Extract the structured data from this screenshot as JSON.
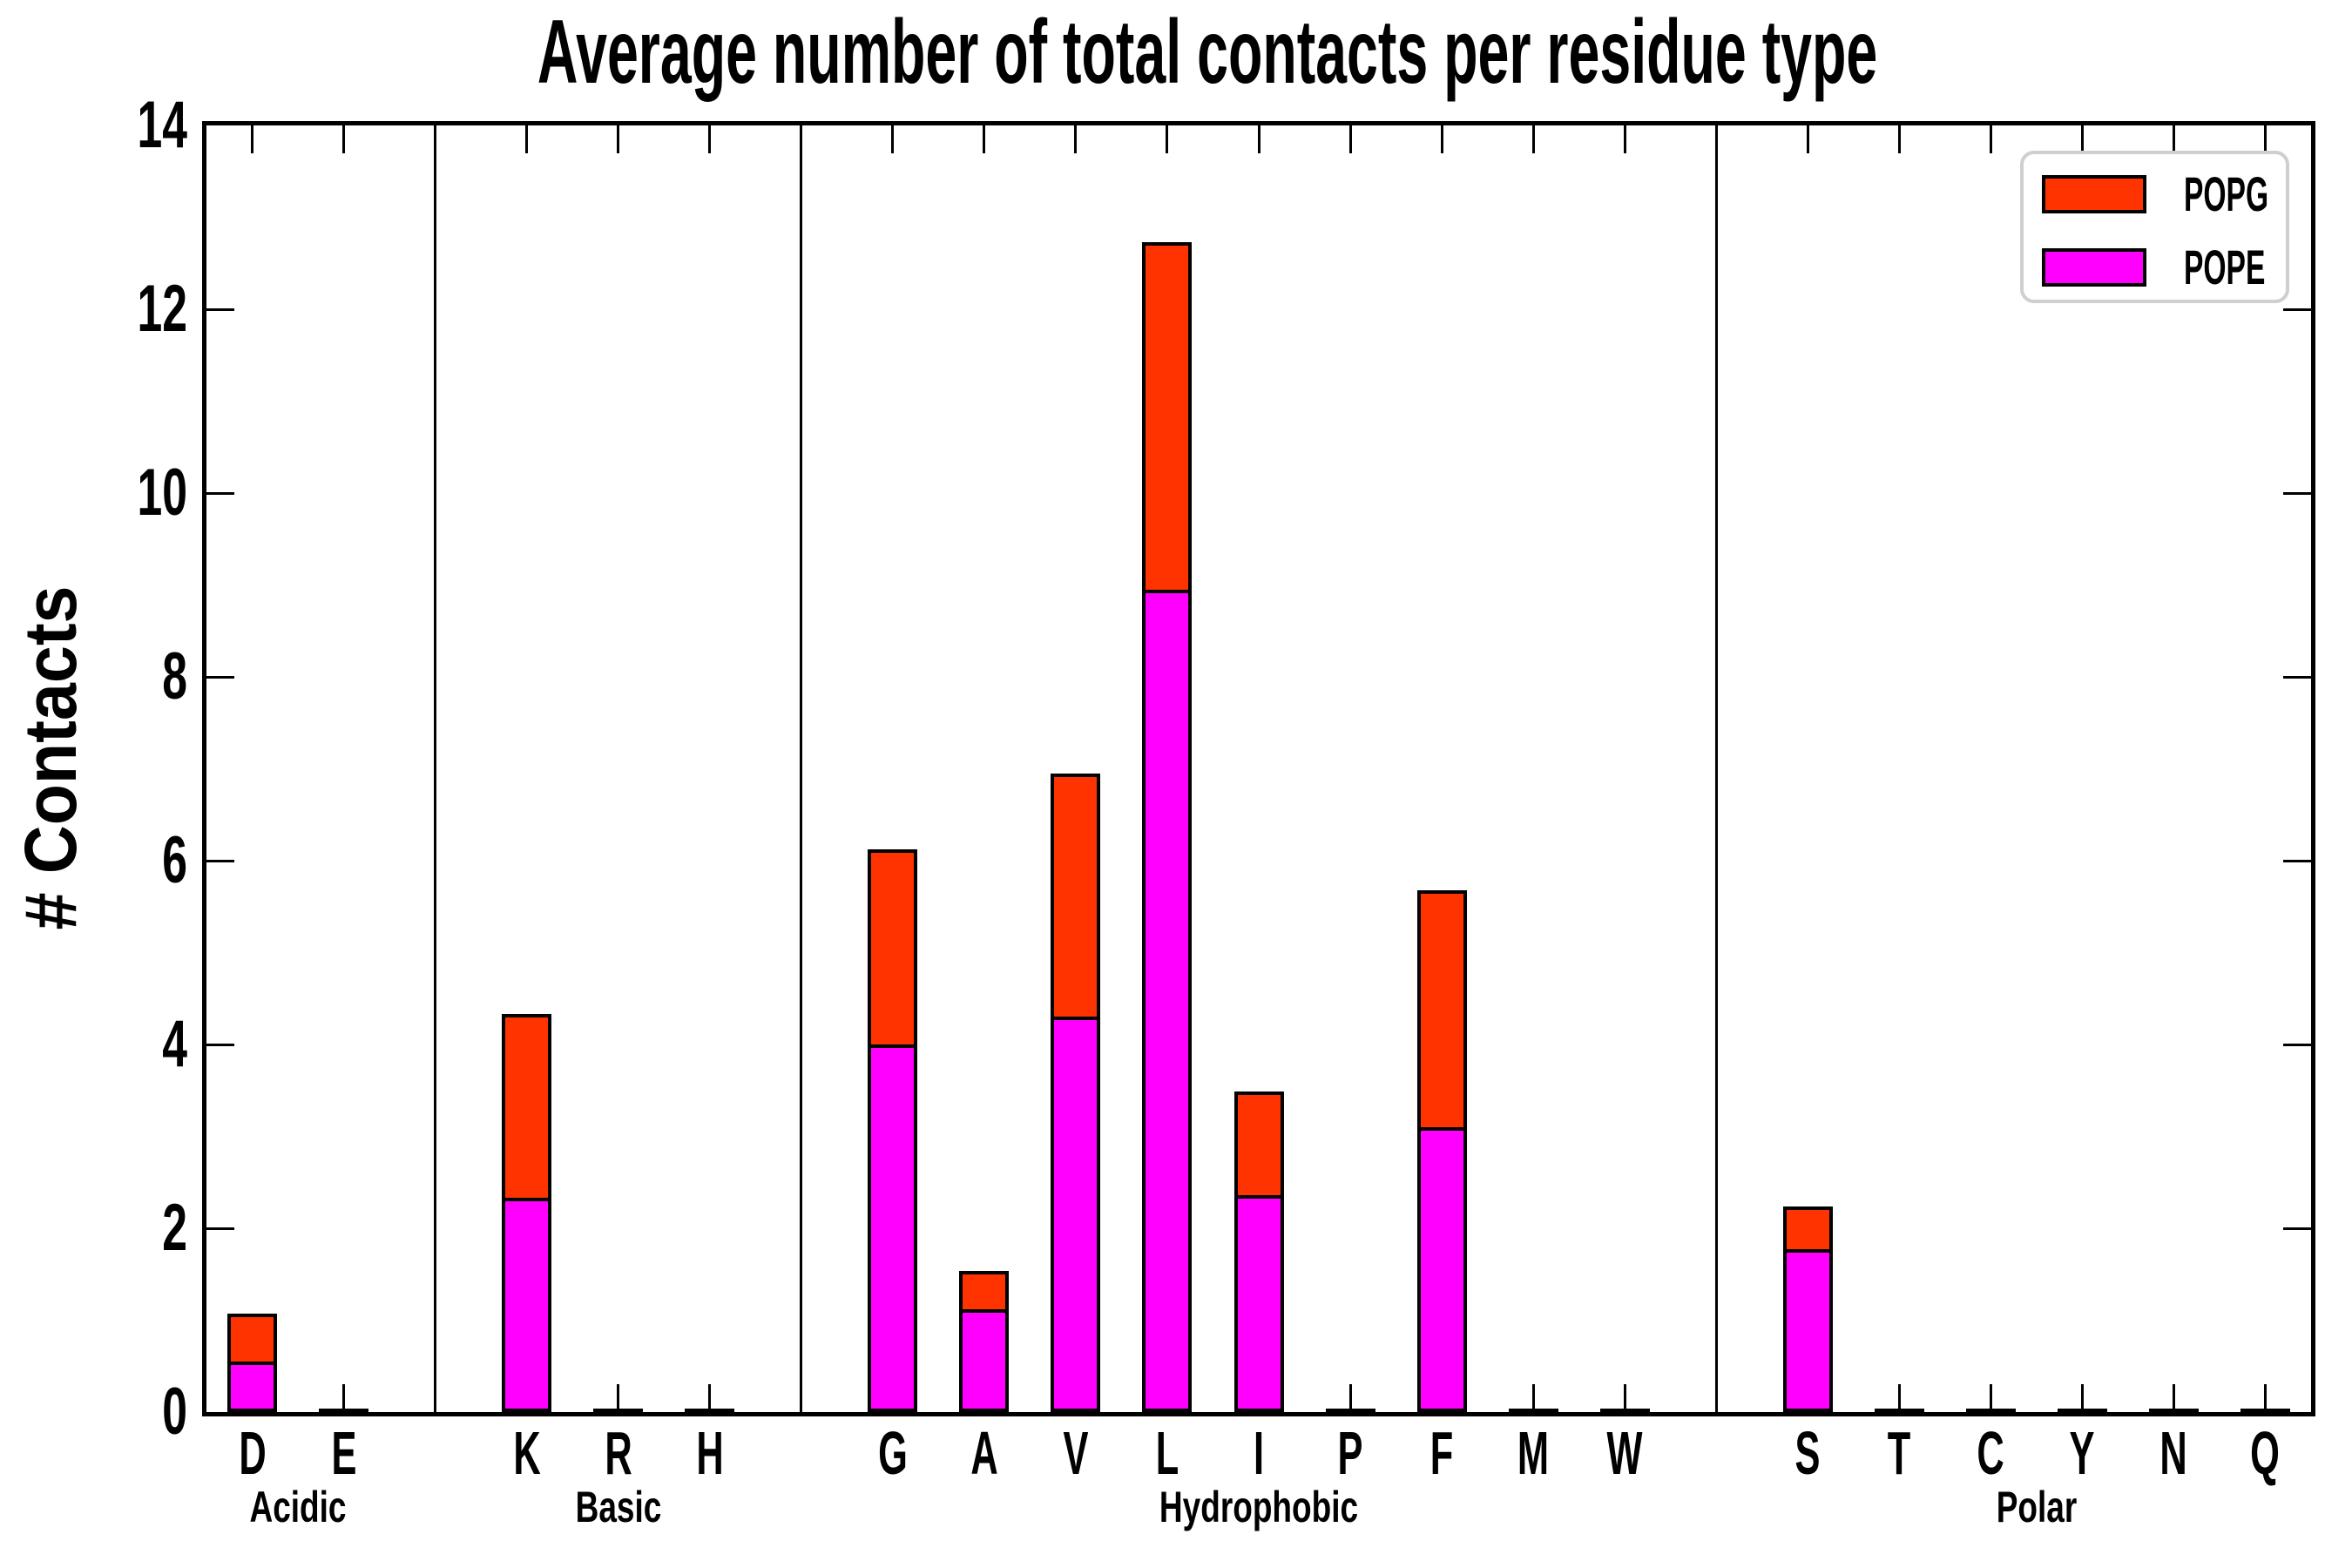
{
  "title": "Average number of total contacts per residue type",
  "y_axis": {
    "label": "# Contacts",
    "tick_labels": [
      "0",
      "2",
      "4",
      "6",
      "8",
      "10",
      "12",
      "14"
    ],
    "min": 0,
    "max": 14
  },
  "legend": {
    "items": [
      {
        "label": "POPG",
        "color": "#ff3300"
      },
      {
        "label": "POPE",
        "color": "#ff00ff"
      }
    ]
  },
  "colors": {
    "popg": "#ff3300",
    "pope": "#ff00ff",
    "edge": "#000000",
    "legend_border": "#cfcfcf"
  },
  "chart_data": {
    "type": "bar",
    "stacked": true,
    "title": "Average number of total contacts per residue type",
    "xlabel": "",
    "ylabel": "# Contacts",
    "ylim": [
      0,
      14
    ],
    "yticks": [
      0,
      2,
      4,
      6,
      8,
      10,
      12,
      14
    ],
    "grid": false,
    "legend_position": "upper right",
    "categories": [
      "D",
      "E",
      "K",
      "R",
      "H",
      "G",
      "A",
      "V",
      "L",
      "I",
      "P",
      "F",
      "M",
      "W",
      "S",
      "T",
      "C",
      "Y",
      "N",
      "Q"
    ],
    "groups": [
      {
        "label": "Acidic",
        "members": [
          "D",
          "E"
        ]
      },
      {
        "label": "Basic",
        "members": [
          "K",
          "R",
          "H"
        ]
      },
      {
        "label": "Hydrophobic",
        "members": [
          "G",
          "A",
          "V",
          "L",
          "I",
          "P",
          "F",
          "M",
          "W"
        ]
      },
      {
        "label": "Polar",
        "members": [
          "S",
          "T",
          "C",
          "Y",
          "N",
          "Q"
        ]
      }
    ],
    "series": [
      {
        "name": "POPE",
        "color": "#ff00ff",
        "values": [
          0.55,
          0.02,
          2.33,
          0.02,
          0.02,
          4.0,
          1.12,
          4.3,
          8.95,
          2.36,
          0.02,
          3.1,
          0.02,
          0.02,
          1.77,
          0.02,
          0.01,
          0.02,
          0.02,
          0.01
        ]
      },
      {
        "name": "POPG",
        "color": "#ff3300",
        "values": [
          0.52,
          0.0,
          2.0,
          0.0,
          0.0,
          2.12,
          0.42,
          2.65,
          3.78,
          1.13,
          0.0,
          2.58,
          0.0,
          0.0,
          0.47,
          0.0,
          0.0,
          0.0,
          0.0,
          0.0
        ]
      }
    ],
    "totals": [
      1.07,
      0.02,
      4.33,
      0.02,
      0.02,
      6.12,
      1.54,
      6.95,
      12.73,
      3.49,
      0.02,
      5.68,
      0.02,
      0.02,
      2.24,
      0.02,
      0.01,
      0.02,
      0.02,
      0.01
    ]
  }
}
